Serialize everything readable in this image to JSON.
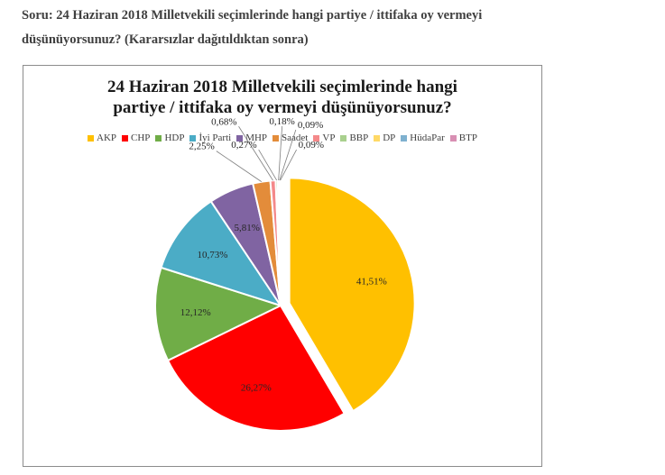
{
  "question": {
    "line1": "Soru: 24 Haziran 2018 Milletvekili seçimlerinde hangi partiye / ittifaka oy vermeyi",
    "line2": "düşünüyorsunuz? (Kararsızlar dağıtıldıktan sonra)"
  },
  "chart_data": {
    "type": "pie",
    "title_line1": "24 Haziran 2018 Milletvekili seçimlerinde hangi",
    "title_line2": "partiye / ittifaka oy vermeyi düşünüyorsunuz?",
    "legend_position": "top",
    "categories": [
      "AKP",
      "CHP",
      "HDP",
      "İyi Parti",
      "MHP",
      "Saadet",
      "VP",
      "BBP",
      "DP",
      "HüdaPar",
      "BTP"
    ],
    "values": [
      41.51,
      26.27,
      12.12,
      10.73,
      5.81,
      2.25,
      0.68,
      0.27,
      0.18,
      0.09,
      0.09
    ],
    "labels": [
      "41,51%",
      "26,27%",
      "12,12%",
      "10,73%",
      "5,81%",
      "2,25%",
      "0,68%",
      "0,27%",
      "0,18%",
      "0,09%",
      "0,09%"
    ],
    "colors": [
      "#FFC000",
      "#FF0000",
      "#70AD47",
      "#4BACC6",
      "#8064A2",
      "#E38C3A",
      "#F4898A",
      "#A9D08E",
      "#FFD966",
      "#7FB1CF",
      "#D88FB3"
    ],
    "exploded": [
      "AKP"
    ]
  }
}
